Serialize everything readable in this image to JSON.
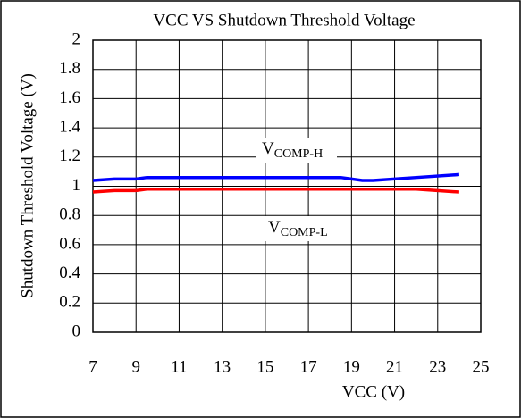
{
  "chart_data": {
    "type": "line",
    "title": "VCC VS Shutdown Threshold Voltage",
    "x_label": "VCC (V)",
    "y_label": "Shutdown Threshold Voltage (V)",
    "x": [
      7,
      8,
      9,
      9.5,
      18.5,
      19.5,
      20,
      22,
      24
    ],
    "series": [
      {
        "name": "VCOMP-H",
        "color": "#0000ff",
        "values": [
          1.04,
          1.05,
          1.05,
          1.06,
          1.06,
          1.04,
          1.04,
          1.06,
          1.08
        ]
      },
      {
        "name": "VCOMP-L",
        "color": "#ff0000",
        "values": [
          0.96,
          0.97,
          0.97,
          0.98,
          0.98,
          0.98,
          0.98,
          0.98,
          0.96
        ]
      }
    ],
    "annotations": [
      {
        "text": "V",
        "sub": "COMP-H",
        "color": "#0000ff"
      },
      {
        "text": "V",
        "sub": "COMP-L",
        "color": "#ff0000"
      }
    ],
    "xlim": [
      7,
      25
    ],
    "xticks": [
      7,
      9,
      11,
      13,
      15,
      17,
      19,
      21,
      23,
      25
    ],
    "ylim": [
      0,
      2
    ],
    "yticks": [
      0,
      0.2,
      0.4,
      0.6,
      0.8,
      1,
      1.2,
      1.4,
      1.6,
      1.8,
      2
    ],
    "grid": true
  }
}
